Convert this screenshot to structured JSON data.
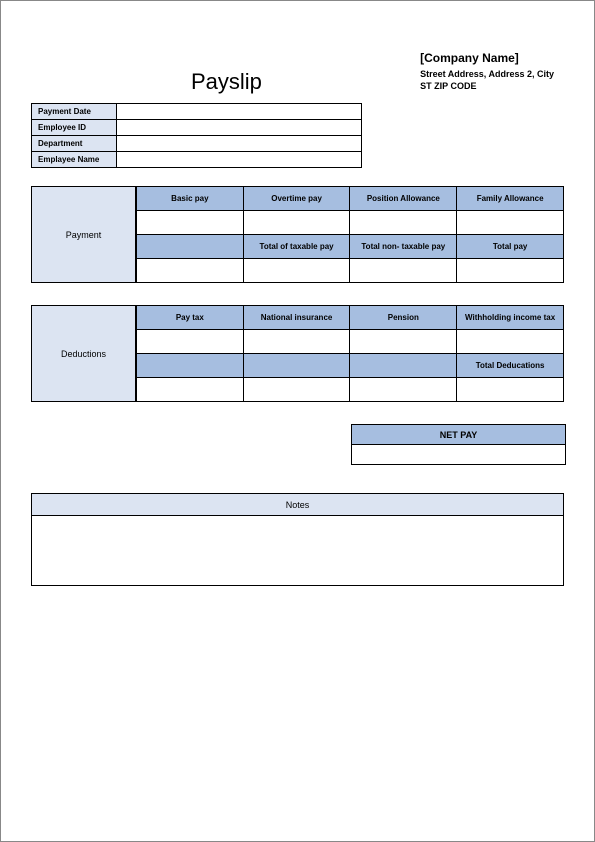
{
  "colors": {
    "light_header": "#dce4f2",
    "dark_header": "#a6bee0",
    "border": "#000000",
    "page_border": "#888888",
    "background": "#ffffff"
  },
  "title": "Payslip",
  "company": {
    "name": "[Company Name]",
    "address_line": "Street Address, Address 2, City",
    "zip_line": "ST ZIP CODE"
  },
  "info": {
    "rows": [
      {
        "label": "Payment Date",
        "value": ""
      },
      {
        "label": "Employee ID",
        "value": ""
      },
      {
        "label": "Department",
        "value": ""
      },
      {
        "label": "Emplayee Name",
        "value": ""
      }
    ]
  },
  "payment": {
    "section_label": "Payment",
    "row1_headers": [
      "Basic pay",
      "Overtime pay",
      "Position Allowance",
      "Family Allowance"
    ],
    "row1_values": [
      "",
      "",
      "",
      ""
    ],
    "row2_headers": [
      "",
      "Total of taxable pay",
      "Total non- taxable pay",
      "Total pay"
    ],
    "row2_values": [
      "",
      "",
      "",
      ""
    ]
  },
  "deductions": {
    "section_label": "Deductions",
    "row1_headers": [
      "Pay tax",
      "National insurance",
      "Pension",
      "Withholding income tax"
    ],
    "row1_values": [
      "",
      "",
      "",
      ""
    ],
    "row2_headers": [
      "",
      "",
      "",
      "Total Deducations"
    ],
    "row2_values": [
      "",
      "",
      "",
      ""
    ]
  },
  "netpay": {
    "label": "NET PAY",
    "value": ""
  },
  "notes": {
    "label": "Notes",
    "body": ""
  }
}
